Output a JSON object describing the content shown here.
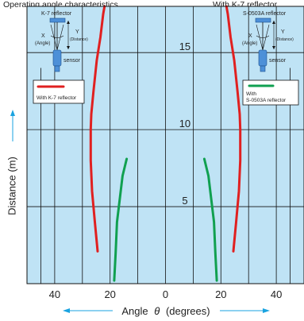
{
  "header": {
    "left_text": "Operating angle characteristics",
    "right_text": "With K-7 reflector"
  },
  "insets": [
    {
      "reflector_label": "K-7 reflector",
      "x_label": "X",
      "x_sub": "(Angle)",
      "y_label": "Y",
      "y_sub": "(Distance)",
      "sensor_label": "sensor",
      "legend_text": "With K-7 reflector",
      "legend_color": "#e02020"
    },
    {
      "reflector_label": "S-0503A reflector",
      "x_label": "X",
      "x_sub": "(Angle)",
      "y_label": "Y",
      "y_sub": "(Distance)",
      "sensor_label": "sensor",
      "legend_text_1": "With",
      "legend_text_2": "S-0503A reflector",
      "legend_color": "#10a050"
    }
  ],
  "chart_data": {
    "type": "line",
    "xlabel_prefix": "Angle",
    "xlabel_symbol": "θ",
    "xlabel_suffix": "(degrees)",
    "ylabel": "Distance (m)",
    "xlim": [
      -50,
      50
    ],
    "ylim": [
      0,
      18
    ],
    "x_ticks": [
      {
        "value": -40,
        "label": "40"
      },
      {
        "value": -20,
        "label": "20"
      },
      {
        "value": 0,
        "label": "0"
      },
      {
        "value": 20,
        "label": "20"
      },
      {
        "value": 40,
        "label": "40"
      }
    ],
    "y_ticks": [
      {
        "value": 5,
        "label": "5"
      },
      {
        "value": 10,
        "label": "10"
      },
      {
        "value": 15,
        "label": "15"
      }
    ],
    "grid": true,
    "background_color": "#bfe3f5",
    "series": [
      {
        "color": "#e02020",
        "x": [
          -24.5,
          -25.5,
          -26.5,
          -27,
          -27,
          -26.8,
          -26,
          -24.8,
          -23.5,
          -22.5,
          -22
        ],
        "y": [
          2.1,
          4,
          6,
          8,
          10,
          11,
          12.5,
          14.5,
          16,
          17.5,
          18
        ]
      },
      {
        "color": "#e02020",
        "x": [
          24.5,
          25.5,
          26.5,
          27,
          27,
          26.8,
          26,
          24.8,
          23.5,
          22.5,
          22
        ],
        "y": [
          2.1,
          4,
          6,
          8,
          10,
          11,
          12.5,
          14.5,
          16,
          17.5,
          18
        ]
      },
      {
        "color": "#10a050",
        "x": [
          -18.5,
          -18,
          -17.5,
          -16.5,
          -15.5,
          -14
        ],
        "y": [
          0.2,
          2,
          4,
          5.5,
          7,
          8.1
        ]
      },
      {
        "color": "#10a050",
        "x": [
          18.5,
          18,
          17.5,
          16.5,
          15.5,
          14
        ],
        "y": [
          0.2,
          2,
          4,
          5.5,
          7,
          8.1
        ]
      }
    ]
  }
}
